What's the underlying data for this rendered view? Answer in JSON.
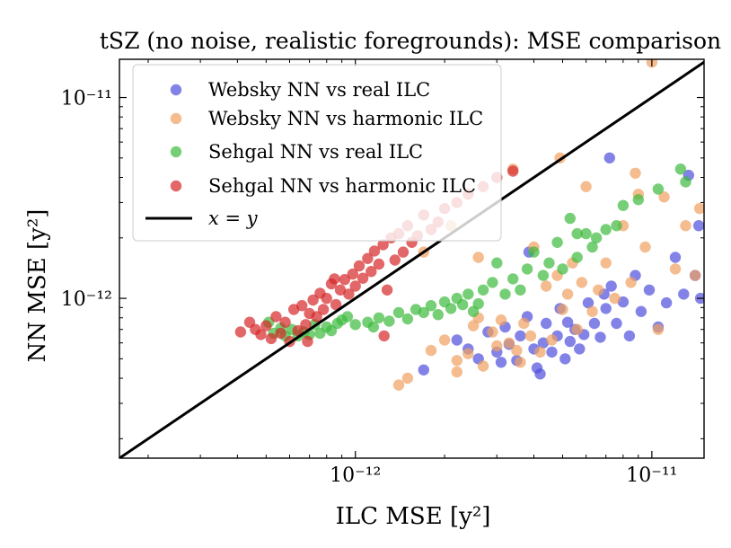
{
  "chart_data": {
    "type": "scatter",
    "title": "tSZ (no noise, realistic foregrounds): MSE comparison",
    "xlabel": "ILC MSE [y²]",
    "ylabel": "NN MSE [y²]",
    "xscale": "log",
    "yscale": "log",
    "xlim": [
      1.6e-13,
      1.5e-11
    ],
    "ylim": [
      1.6e-13,
      1.55e-11
    ],
    "xticks": [
      {
        "value": 1e-12,
        "label": "10⁻¹²"
      },
      {
        "value": 1e-11,
        "label": "10⁻¹¹"
      }
    ],
    "yticks": [
      {
        "value": 1e-12,
        "label": "10⁻¹²"
      },
      {
        "value": 1e-11,
        "label": "10⁻¹¹"
      }
    ],
    "legend_position": "top-left",
    "reference_line": {
      "label": "x = y",
      "color": "#000000"
    },
    "series": [
      {
        "name": "Websky NN vs real ILC",
        "color": "#4f4fdd",
        "points": [
          [
            1.7e-12,
            4.4e-13
          ],
          [
            2.2e-12,
            6.2e-13
          ],
          [
            2.4e-12,
            5.6e-13
          ],
          [
            2.6e-12,
            5e-13
          ],
          [
            2.8e-12,
            6.8e-13
          ],
          [
            3e-12,
            5.4e-13
          ],
          [
            3.2e-12,
            7.2e-13
          ],
          [
            3.3e-12,
            5.9e-13
          ],
          [
            3.5e-12,
            4.9e-13
          ],
          [
            3.6e-12,
            6.5e-13
          ],
          [
            3.8e-12,
            8.1e-13
          ],
          [
            4e-12,
            5.6e-13
          ],
          [
            4.1e-12,
            4.5e-13
          ],
          [
            4.3e-12,
            6e-13
          ],
          [
            4.4e-12,
            7.5e-13
          ],
          [
            4.6e-12,
            5.4e-13
          ],
          [
            4.8e-12,
            6.5e-13
          ],
          [
            4.9e-12,
            8.9e-13
          ],
          [
            5.1e-12,
            5e-13
          ],
          [
            5.3e-12,
            6.1e-13
          ],
          [
            5.5e-12,
            7e-13
          ],
          [
            5.7e-12,
            5.6e-13
          ],
          [
            5.9e-12,
            6.6e-13
          ],
          [
            6.1e-12,
            9.5e-13
          ],
          [
            6.4e-12,
            7.5e-13
          ],
          [
            6.7e-12,
            6.4e-13
          ],
          [
            7e-12,
            8.9e-13
          ],
          [
            7.3e-12,
            1.15e-12
          ],
          [
            7.6e-12,
            7.5e-13
          ],
          [
            8e-12,
            9.6e-13
          ],
          [
            8.4e-12,
            6.5e-13
          ],
          [
            8.8e-12,
            1.3e-12
          ],
          [
            9.2e-12,
            8.6e-13
          ],
          [
            9.8e-12,
            1.1e-12
          ],
          [
            1.05e-11,
            7.2e-13
          ],
          [
            1.12e-11,
            9.5e-13
          ],
          [
            1.2e-11,
            1.6e-12
          ],
          [
            1.28e-11,
            1.05e-12
          ],
          [
            1.33e-11,
            4.1e-12
          ],
          [
            1.4e-11,
            1.3e-12
          ],
          [
            1.44e-11,
            2.3e-12
          ],
          [
            1.46e-11,
            1e-12
          ],
          [
            3.85e-12,
            1.7e-12
          ],
          [
            6.9e-12,
            1.05e-12
          ],
          [
            7.2e-12,
            5e-12
          ],
          [
            5.2e-12,
            7.6e-13
          ],
          [
            4.2e-12,
            4.2e-13
          ],
          [
            3.1e-12,
            4.8e-13
          ]
        ]
      },
      {
        "name": "Websky NN vs harmonic ILC",
        "color": "#f0a060",
        "points": [
          [
            1.4e-12,
            3.7e-13
          ],
          [
            1.5e-12,
            4e-13
          ],
          [
            1.8e-12,
            5.5e-13
          ],
          [
            2e-12,
            6.2e-13
          ],
          [
            2.2e-12,
            4.9e-13
          ],
          [
            2.4e-12,
            5.3e-13
          ],
          [
            2.5e-12,
            7.3e-13
          ],
          [
            2.6e-12,
            8e-13
          ],
          [
            2.7e-12,
            4.6e-13
          ],
          [
            2.9e-12,
            6.8e-13
          ],
          [
            3e-12,
            5.8e-13
          ],
          [
            3.1e-12,
            7.8e-13
          ],
          [
            3.3e-12,
            6e-13
          ],
          [
            3.4e-12,
            4.4e-12
          ],
          [
            3.5e-12,
            5.5e-13
          ],
          [
            3.7e-12,
            7.5e-13
          ],
          [
            3.9e-12,
            6.5e-13
          ],
          [
            4e-12,
            1.8e-12
          ],
          [
            4.2e-12,
            5.4e-13
          ],
          [
            4.4e-12,
            1.15e-12
          ],
          [
            4.6e-12,
            6.2e-13
          ],
          [
            4.8e-12,
            1.3e-12
          ],
          [
            5e-12,
            8.8e-13
          ],
          [
            5.2e-12,
            1.05e-12
          ],
          [
            5.4e-12,
            1.5e-12
          ],
          [
            5.6e-12,
            7e-13
          ],
          [
            5.8e-12,
            1.2e-12
          ],
          [
            6e-12,
            3.6e-12
          ],
          [
            6.3e-12,
            8.6e-13
          ],
          [
            6.6e-12,
            1.1e-12
          ],
          [
            7e-12,
            1.5e-12
          ],
          [
            7.5e-12,
            1e-12
          ],
          [
            8e-12,
            2.3e-12
          ],
          [
            8.5e-12,
            1.2e-12
          ],
          [
            9e-12,
            3.3e-12
          ],
          [
            9.5e-12,
            1.8e-12
          ],
          [
            1e-11,
            1.5e-11
          ],
          [
            1.05e-11,
            7e-13
          ],
          [
            1.1e-11,
            3.2e-12
          ],
          [
            1.2e-11,
            1.4e-12
          ],
          [
            1.3e-11,
            2.3e-12
          ],
          [
            1.4e-11,
            1.3e-12
          ],
          [
            1.45e-11,
            2.8e-12
          ],
          [
            2.1e-12,
            2.3e-12
          ],
          [
            1.7e-12,
            1.7e-12
          ],
          [
            2.6e-12,
            1.6e-12
          ],
          [
            4.9e-12,
            5e-12
          ],
          [
            8.8e-12,
            4.2e-12
          ],
          [
            3.6e-12,
            4.8e-13
          ],
          [
            2.2e-12,
            4.3e-13
          ]
        ]
      },
      {
        "name": "Sehgal NN vs real ILC",
        "color": "#3cba3c",
        "points": [
          [
            5.1e-13,
            7.6e-13
          ],
          [
            5.3e-13,
            6.7e-13
          ],
          [
            5.6e-13,
            7.1e-13
          ],
          [
            5.8e-13,
            6.5e-13
          ],
          [
            6.1e-13,
            7e-13
          ],
          [
            6.4e-13,
            6.5e-13
          ],
          [
            6.7e-13,
            6.8e-13
          ],
          [
            7e-13,
            6.6e-13
          ],
          [
            7.3e-13,
            7.4e-13
          ],
          [
            7.6e-13,
            6.7e-13
          ],
          [
            8e-13,
            7.2e-13
          ],
          [
            8.3e-13,
            6.9e-13
          ],
          [
            8.7e-13,
            7.5e-13
          ],
          [
            9e-13,
            7.8e-13
          ],
          [
            9.4e-13,
            8.1e-13
          ],
          [
            1e-12,
            7.4e-13
          ],
          [
            1.1e-12,
            7.6e-13
          ],
          [
            1.15e-12,
            7.2e-13
          ],
          [
            1.2e-12,
            8e-13
          ],
          [
            1.3e-12,
            7.7e-13
          ],
          [
            1.4e-12,
            8.5e-13
          ],
          [
            1.5e-12,
            7.9e-13
          ],
          [
            1.6e-12,
            8.8e-13
          ],
          [
            1.7e-12,
            8.5e-13
          ],
          [
            1.8e-12,
            9.2e-13
          ],
          [
            1.9e-12,
            8.3e-13
          ],
          [
            2e-12,
            9.6e-13
          ],
          [
            2.1e-12,
            8.9e-13
          ],
          [
            2.2e-12,
            1e-12
          ],
          [
            2.3e-12,
            9.3e-13
          ],
          [
            2.4e-12,
            1.05e-12
          ],
          [
            2.5e-12,
            8.6e-13
          ],
          [
            2.6e-12,
            9.4e-13
          ],
          [
            2.7e-12,
            1.1e-12
          ],
          [
            2.9e-12,
            1.2e-12
          ],
          [
            3e-12,
            1.5e-12
          ],
          [
            3.2e-12,
            1.05e-12
          ],
          [
            3.4e-12,
            1.25e-12
          ],
          [
            3.6e-12,
            1.1e-12
          ],
          [
            3.8e-12,
            1.4e-12
          ],
          [
            4e-12,
            1.7e-12
          ],
          [
            4.3e-12,
            1.3e-12
          ],
          [
            4.5e-12,
            1.5e-12
          ],
          [
            4.8e-12,
            1.9e-12
          ],
          [
            5e-12,
            1.4e-12
          ],
          [
            5.3e-12,
            2.5e-12
          ],
          [
            5.6e-12,
            2.1e-12
          ],
          [
            6e-12,
            2.1e-12
          ],
          [
            6.5e-12,
            2e-12
          ],
          [
            7e-12,
            2.2e-12
          ],
          [
            7.6e-12,
            2.3e-12
          ],
          [
            8e-12,
            2.9e-12
          ],
          [
            9e-12,
            3.1e-12
          ],
          [
            1.05e-11,
            3.5e-12
          ],
          [
            1.25e-11,
            4.4e-12
          ],
          [
            1.3e-11,
            3.8e-12
          ],
          [
            6.3e-12,
            1.8e-12
          ],
          [
            5.6e-12,
            1.6e-12
          ]
        ]
      },
      {
        "name": "Sehgal NN vs harmonic ILC",
        "color": "#d62728",
        "points": [
          [
            4.1e-13,
            6.8e-13
          ],
          [
            4.4e-13,
            7.6e-13
          ],
          [
            4.6e-13,
            7e-13
          ],
          [
            4.8e-13,
            6.6e-13
          ],
          [
            5e-13,
            7.3e-13
          ],
          [
            5.2e-13,
            6.3e-13
          ],
          [
            5.4e-13,
            8.1e-13
          ],
          [
            5.6e-13,
            6.7e-13
          ],
          [
            5.8e-13,
            7.6e-13
          ],
          [
            6e-13,
            6.1e-13
          ],
          [
            6.2e-13,
            8.8e-13
          ],
          [
            6.4e-13,
            6.9e-13
          ],
          [
            6.6e-13,
            9.2e-13
          ],
          [
            6.8e-13,
            7.4e-13
          ],
          [
            7e-13,
            8.4e-13
          ],
          [
            7.2e-13,
            9.8e-13
          ],
          [
            7.4e-13,
            8.1e-13
          ],
          [
            7.6e-13,
            1.06e-12
          ],
          [
            7.8e-13,
            8.8e-13
          ],
          [
            8e-13,
            1e-12
          ],
          [
            8.3e-13,
            1.18e-12
          ],
          [
            8.6e-13,
            9.3e-13
          ],
          [
            8.9e-13,
            1.1e-12
          ],
          [
            9.2e-13,
            1.24e-12
          ],
          [
            9.5e-13,
            1.05e-12
          ],
          [
            9.8e-13,
            1.32e-12
          ],
          [
            1e-12,
            1.15e-12
          ],
          [
            1.03e-12,
            1.45e-12
          ],
          [
            1.06e-12,
            1.26e-12
          ],
          [
            1.1e-12,
            1.58e-12
          ],
          [
            1.13e-12,
            1.36e-12
          ],
          [
            1.16e-12,
            1.72e-12
          ],
          [
            1.2e-12,
            1.48e-12
          ],
          [
            1.24e-12,
            1.85e-12
          ],
          [
            1.28e-12,
            1.1e-12
          ],
          [
            1.32e-12,
            2e-12
          ],
          [
            1.36e-12,
            1.55e-12
          ],
          [
            1.4e-12,
            2.1e-12
          ],
          [
            1.45e-12,
            1.7e-12
          ],
          [
            1.5e-12,
            2.3e-12
          ],
          [
            1.55e-12,
            1.9e-12
          ],
          [
            1.62e-12,
            2.05e-12
          ],
          [
            1.7e-12,
            2.6e-12
          ],
          [
            1.8e-12,
            2.2e-12
          ],
          [
            1.9e-12,
            2.4e-12
          ],
          [
            2e-12,
            2.8e-12
          ],
          [
            2.2e-12,
            3e-12
          ],
          [
            2.4e-12,
            3.3e-12
          ],
          [
            2.7e-12,
            3.6e-12
          ],
          [
            3e-12,
            4e-12
          ],
          [
            3.4e-12,
            4.3e-12
          ],
          [
            1.25e-12,
            6.5e-13
          ],
          [
            8.5e-13,
            1.25e-12
          ],
          [
            6.9e-13,
            6.1e-13
          ]
        ]
      }
    ]
  }
}
